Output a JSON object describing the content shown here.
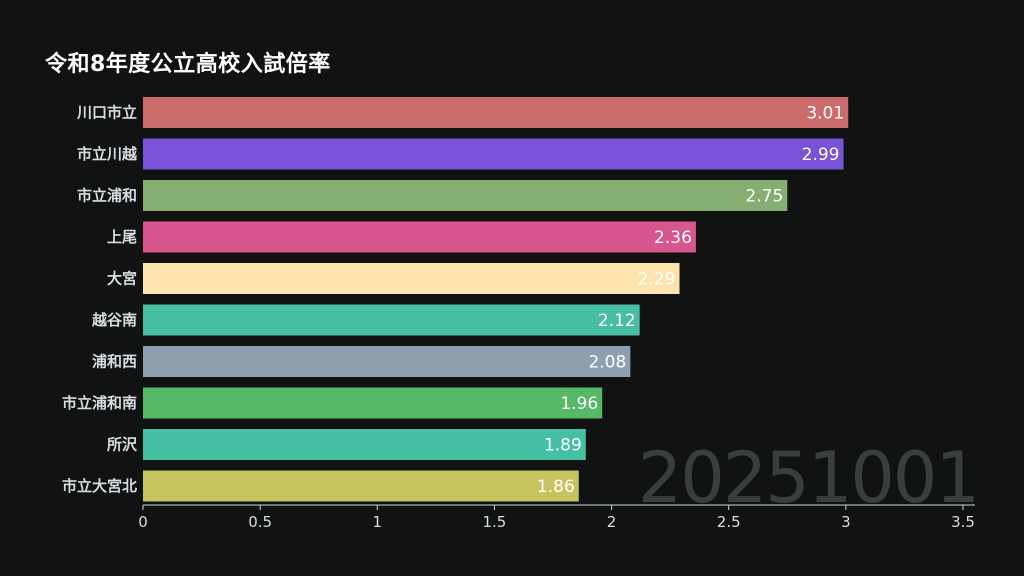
{
  "chart_data": {
    "type": "bar",
    "orientation": "horizontal",
    "title": "令和8年度公立高校入試倍率",
    "date_label": "20251001",
    "categories": [
      "川口市立",
      "市立川越",
      "市立浦和",
      "上尾",
      "大宮",
      "越谷南",
      "浦和西",
      "市立浦和南",
      "所沢",
      "市立大宮北"
    ],
    "values": [
      3.01,
      2.99,
      2.75,
      2.36,
      2.29,
      2.12,
      2.08,
      1.96,
      1.89,
      1.86
    ],
    "value_labels": [
      "3.01",
      "2.99",
      "2.75",
      "2.36",
      "2.29",
      "2.12",
      "2.08",
      "1.96",
      "1.89",
      "1.86"
    ],
    "colors": [
      "#cc6b6b",
      "#7b53d8",
      "#86ad72",
      "#d8568e",
      "#fde3ad",
      "#47bea0",
      "#8ea0ad",
      "#56b968",
      "#45c0a4",
      "#c7c35f"
    ],
    "xlim": [
      0,
      3.5
    ],
    "x_ticks": [
      0,
      0.5,
      1,
      1.5,
      2,
      2.5,
      3,
      3.5
    ],
    "x_tick_labels": [
      "0",
      "0.5",
      "1",
      "1.5",
      "2",
      "2.5",
      "3",
      "3.5"
    ],
    "grid": false,
    "legend": "none"
  }
}
